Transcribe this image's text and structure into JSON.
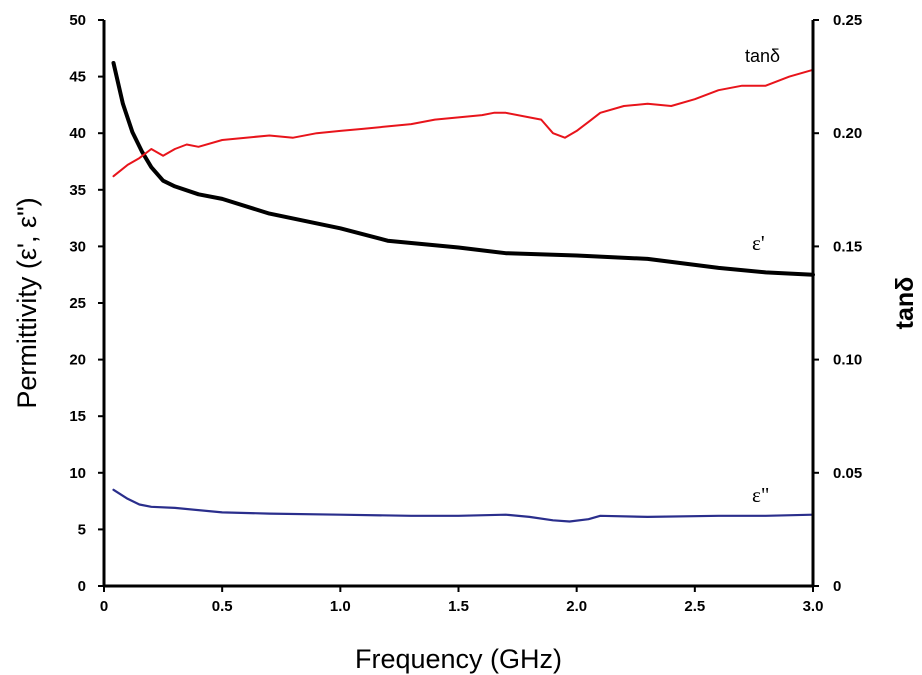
{
  "chart_data": {
    "type": "line",
    "xlabel": "Frequency (GHz)",
    "ylabel": "Permittivity (ε', ε\")",
    "y2label": "tanδ",
    "xlim": [
      0,
      3.0
    ],
    "ylim": [
      0,
      50
    ],
    "y2lim": [
      0,
      0.25
    ],
    "x_ticks": [
      "0",
      "0.5",
      "1.0",
      "1.5",
      "2.0",
      "2.5",
      "3.0"
    ],
    "y_ticks": [
      "0",
      "5",
      "10",
      "15",
      "20",
      "25",
      "30",
      "35",
      "40",
      "45",
      "50"
    ],
    "y2_ticks": [
      "0",
      "0.05",
      "0.10",
      "0.15",
      "0.20",
      "0.25"
    ],
    "grid": false,
    "legend": "inline labels",
    "series": [
      {
        "name": "ε'",
        "axis": "left",
        "color": "#000000",
        "x": [
          0.04,
          0.08,
          0.12,
          0.16,
          0.2,
          0.25,
          0.3,
          0.4,
          0.5,
          0.7,
          1.0,
          1.2,
          1.5,
          1.7,
          2.0,
          2.3,
          2.6,
          2.8,
          3.0
        ],
        "values": [
          46.2,
          42.6,
          40.1,
          38.4,
          37.0,
          35.8,
          35.3,
          34.6,
          34.2,
          32.9,
          31.6,
          30.5,
          29.9,
          29.4,
          29.2,
          28.9,
          28.1,
          27.7,
          27.5
        ]
      },
      {
        "name": "ε\"",
        "axis": "left",
        "color": "#2a2e8c",
        "x": [
          0.04,
          0.1,
          0.15,
          0.2,
          0.3,
          0.5,
          0.7,
          1.0,
          1.3,
          1.5,
          1.7,
          1.8,
          1.9,
          1.97,
          2.05,
          2.1,
          2.3,
          2.6,
          2.8,
          3.0
        ],
        "values": [
          8.5,
          7.7,
          7.2,
          7.0,
          6.9,
          6.5,
          6.4,
          6.3,
          6.2,
          6.2,
          6.3,
          6.1,
          5.8,
          5.7,
          5.9,
          6.2,
          6.1,
          6.2,
          6.2,
          6.3
        ]
      },
      {
        "name": "tanδ",
        "axis": "right",
        "color": "#e8141b",
        "x": [
          0.04,
          0.1,
          0.15,
          0.2,
          0.25,
          0.3,
          0.35,
          0.4,
          0.5,
          0.6,
          0.7,
          0.8,
          0.9,
          1.0,
          1.1,
          1.2,
          1.3,
          1.4,
          1.5,
          1.6,
          1.65,
          1.7,
          1.8,
          1.85,
          1.9,
          1.95,
          2.0,
          2.05,
          2.1,
          2.2,
          2.3,
          2.4,
          2.5,
          2.6,
          2.7,
          2.8,
          2.9,
          3.0
        ],
        "values": [
          0.181,
          0.186,
          0.189,
          0.193,
          0.19,
          0.193,
          0.195,
          0.194,
          0.197,
          0.198,
          0.199,
          0.198,
          0.2,
          0.201,
          0.202,
          0.203,
          0.204,
          0.206,
          0.207,
          0.208,
          0.209,
          0.209,
          0.207,
          0.206,
          0.2,
          0.198,
          0.201,
          0.205,
          0.209,
          0.212,
          0.213,
          0.212,
          0.215,
          0.219,
          0.221,
          0.221,
          0.225,
          0.228
        ]
      }
    ]
  }
}
